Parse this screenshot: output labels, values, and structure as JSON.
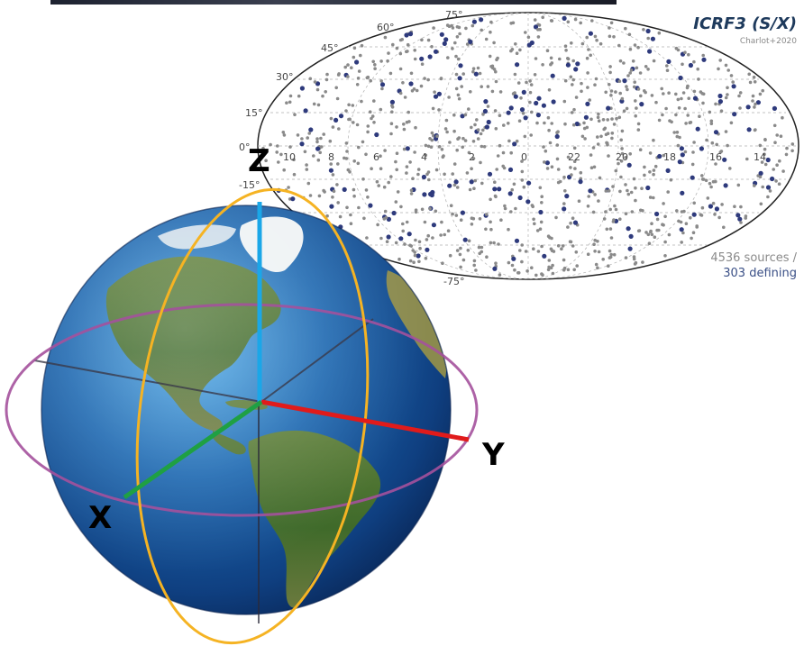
{
  "map": {
    "title": "ICRF3 (S/X)",
    "credit": "Charlot+2020",
    "sources_total": "4536 sources /",
    "sources_defining": "303 defining",
    "dec_labels": [
      "75°",
      "60°",
      "45°",
      "30°",
      "15°",
      "0°",
      "-15°",
      "-75°"
    ],
    "ra_labels": [
      "10",
      "8",
      "6",
      "4",
      "2",
      "0",
      "22",
      "20",
      "18",
      "16",
      "14"
    ],
    "colors": {
      "regular_source": "#8a8a8a",
      "defining_source": "#2e3a7c"
    }
  },
  "axes": {
    "x": {
      "label": "X",
      "color": "#1fa043"
    },
    "y": {
      "label": "Y",
      "color": "#e01b1b"
    },
    "z": {
      "label": "Z",
      "color": "#1aa7e8"
    }
  },
  "globe": {
    "ocean_color": "#1c67b0",
    "equator_ring_color": "#a4519c",
    "meridian_ring_color": "#f5b323"
  }
}
